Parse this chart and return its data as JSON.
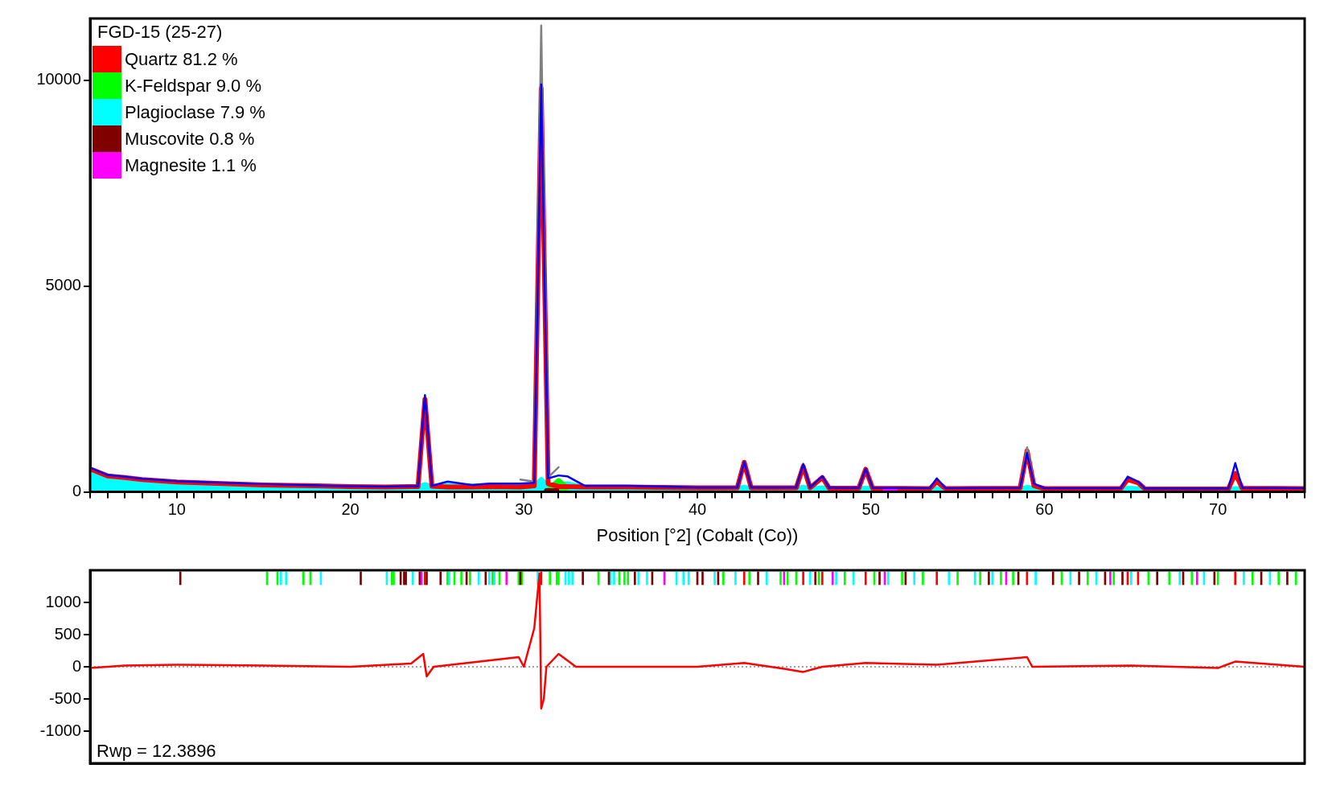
{
  "chart_data": [
    {
      "type": "line",
      "legend_title": "FGD-15 (25-27)",
      "xlabel": "Position [°2] (Cobalt (Co))",
      "legend": "top left",
      "marker": "none",
      "xlim": [
        5,
        75
      ],
      "xticks": [
        {
          "value": 5,
          "label": null
        },
        {
          "value": 6,
          "label": null
        },
        {
          "value": 7,
          "label": null
        },
        {
          "value": 8,
          "label": null
        },
        {
          "value": 9,
          "label": null
        },
        10,
        {
          "value": 11,
          "label": null
        },
        {
          "value": 12,
          "label": null
        },
        {
          "value": 13,
          "label": null
        },
        {
          "value": 14,
          "label": null
        },
        {
          "value": 15,
          "label": null
        },
        {
          "value": 16,
          "label": null
        },
        {
          "value": 17,
          "label": null
        },
        {
          "value": 18,
          "label": null
        },
        {
          "value": 19,
          "label": null
        },
        20,
        {
          "value": 21,
          "label": null
        },
        {
          "value": 22,
          "label": null
        },
        {
          "value": 23,
          "label": null
        },
        {
          "value": 24,
          "label": null
        },
        {
          "value": 25,
          "label": null
        },
        {
          "value": 26,
          "label": null
        },
        {
          "value": 27,
          "label": null
        },
        {
          "value": 28,
          "label": null
        },
        {
          "value": 29,
          "label": null
        },
        30,
        {
          "value": 31,
          "label": null
        },
        {
          "value": 32,
          "label": null
        },
        {
          "value": 33,
          "label": null
        },
        {
          "value": 34,
          "label": null
        },
        {
          "value": 35,
          "label": null
        },
        {
          "value": 36,
          "label": null
        },
        {
          "value": 37,
          "label": null
        },
        {
          "value": 38,
          "label": null
        },
        {
          "value": 39,
          "label": null
        },
        40,
        {
          "value": 41,
          "label": null
        },
        {
          "value": 42,
          "label": null
        },
        {
          "value": 43,
          "label": null
        },
        {
          "value": 44,
          "label": null
        },
        {
          "value": 45,
          "label": null
        },
        {
          "value": 46,
          "label": null
        },
        {
          "value": 47,
          "label": null
        },
        {
          "value": 48,
          "label": null
        },
        {
          "value": 49,
          "label": null
        },
        50,
        {
          "value": 51,
          "label": null
        },
        {
          "value": 52,
          "label": null
        },
        {
          "value": 53,
          "label": null
        },
        {
          "value": 54,
          "label": null
        },
        {
          "value": 55,
          "label": null
        },
        {
          "value": 56,
          "label": null
        },
        {
          "value": 57,
          "label": null
        },
        {
          "value": 58,
          "label": null
        },
        {
          "value": 59,
          "label": null
        },
        60,
        {
          "value": 61,
          "label": null
        },
        {
          "value": 62,
          "label": null
        },
        {
          "value": 63,
          "label": null
        },
        {
          "value": 64,
          "label": null
        },
        {
          "value": 65,
          "label": null
        },
        {
          "value": 66,
          "label": null
        },
        {
          "value": 67,
          "label": null
        },
        {
          "value": 68,
          "label": null
        },
        {
          "value": 69,
          "label": null
        },
        70,
        {
          "value": 71,
          "label": null
        },
        {
          "value": 72,
          "label": null
        },
        {
          "value": 73,
          "label": null
        },
        {
          "value": 74,
          "label": null
        },
        {
          "value": 75,
          "label": null
        }
      ],
      "ylim": [
        0,
        11500
      ],
      "yticks": [
        0,
        5000,
        10000
      ],
      "x": [
        5,
        6,
        7,
        8,
        10,
        12,
        15,
        18,
        20,
        22,
        23.9,
        24.3,
        24.7,
        25.6,
        27,
        28,
        29.8,
        30.6,
        31,
        31.4,
        32,
        32.5,
        33.5,
        36,
        40,
        42.3,
        42.7,
        43.1,
        45.7,
        46.1,
        46.5,
        47.2,
        47.6,
        49.3,
        49.7,
        50.1,
        53.4,
        53.8,
        54.3,
        58.6,
        59,
        59.4,
        60,
        64.4,
        64.8,
        65.4,
        65.8,
        70.6,
        71,
        71.4,
        75
      ],
      "series": [
        {
          "name": "Quartz 81.2 %",
          "color": "#ff0000",
          "values": [
            560,
            390,
            350,
            300,
            240,
            210,
            170,
            150,
            130,
            120,
            130,
            2250,
            140,
            120,
            120,
            130,
            120,
            150,
            9800,
            200,
            130,
            130,
            120,
            120,
            100,
            100,
            720,
            100,
            100,
            620,
            100,
            350,
            90,
            90,
            550,
            90,
            80,
            250,
            80,
            90,
            1000,
            150,
            80,
            80,
            300,
            220,
            70,
            70,
            450,
            90,
            80
          ]
        },
        {
          "name": "K-Feldspar 9.0 %",
          "type": "area",
          "color": "#00ff00",
          "x": [
            31.5,
            32,
            32.5
          ],
          "values": [
            100,
            280,
            100
          ]
        },
        {
          "name": "Plagioclase 7.9 %",
          "type": "area",
          "color": "#00ffff",
          "values": [
            520,
            370,
            330,
            280,
            220,
            190,
            160,
            140,
            120,
            110,
            120,
            180,
            120,
            160,
            140,
            150,
            130,
            140,
            300,
            150,
            160,
            200,
            110,
            110,
            90,
            90,
            110,
            90,
            90,
            110,
            90,
            100,
            80,
            80,
            90,
            80,
            70,
            80,
            70,
            70,
            110,
            90,
            70,
            70,
            90,
            80,
            60,
            60,
            80,
            70,
            60
          ]
        },
        {
          "name": "Muscovite 0.8 %",
          "color": "#800000",
          "x": [
            31.3,
            31.9
          ],
          "values": [
            30,
            30
          ]
        },
        {
          "name": "Magnesite 1.1 %",
          "color": "#ff00ff",
          "x": [
            50.8,
            51.4
          ],
          "values": [
            30,
            30
          ]
        },
        {
          "color": "#808080",
          "values": [
            null,
            null,
            null,
            null,
            null,
            null,
            null,
            null,
            null,
            null,
            null,
            null,
            null,
            null,
            null,
            null,
            300,
            250,
            11330,
            350,
            600,
            null,
            null,
            null,
            null,
            null,
            null,
            null,
            null,
            null,
            null,
            null,
            null,
            null,
            null,
            null,
            null,
            null,
            null,
            100,
            1080,
            200,
            null,
            null,
            null,
            null,
            null,
            null,
            null,
            null,
            null
          ]
        },
        {
          "color": "#0000ff",
          "values": [
            590,
            410,
            370,
            320,
            260,
            230,
            190,
            160,
            140,
            130,
            140,
            2350,
            150,
            250,
            170,
            200,
            200,
            220,
            9900,
            330,
            400,
            380,
            150,
            150,
            110,
            110,
            730,
            110,
            110,
            680,
            110,
            380,
            100,
            100,
            560,
            100,
            90,
            330,
            90,
            100,
            950,
            200,
            90,
            90,
            370,
            250,
            80,
            80,
            700,
            100,
            90
          ]
        }
      ]
    },
    {
      "type": "line",
      "marker": "none",
      "tick_labels": "y",
      "annotations": [
        "Rwp = 12.3896"
      ],
      "xlim": [
        5,
        75
      ],
      "ylim": [
        -1500,
        1500
      ],
      "yticks": [
        -1000,
        -500,
        0,
        500,
        1000
      ],
      "ref_lines": [
        {
          "axis": "y",
          "value": 0,
          "color": "#808080",
          "line_style": "dotted"
        }
      ],
      "series": [
        {
          "type": "bar",
          "color": "#ff0000",
          "x": [
            24.3,
            31,
            42.7,
            46.1,
            47.2,
            49.7,
            53.8,
            59,
            64.8,
            65.4,
            71
          ],
          "base": [
            1275,
            1275,
            1275,
            1275,
            1275,
            1275,
            1275,
            1275,
            1275,
            1275,
            1275
          ],
          "values": [
            200,
            200,
            200,
            200,
            200,
            200,
            200,
            200,
            200,
            200,
            200
          ]
        },
        {
          "type": "bar",
          "color": "#00ff00",
          "x": [
            15.2,
            15.8,
            17.3,
            17.7,
            22.4,
            22.5,
            25.6,
            26,
            26.4,
            26.9,
            28.2,
            28.6,
            29.7,
            29.9,
            31.5,
            31.9,
            32,
            34.3,
            35.5,
            35.8,
            36,
            41.5,
            43,
            44.8,
            45.2,
            45.7,
            47,
            48.5,
            50.2,
            51.8,
            53,
            55,
            56.3,
            57.5,
            58.2,
            61,
            62.5,
            64,
            66,
            67.2,
            68.5,
            70,
            72,
            73.5,
            74.5
          ],
          "base": [
            1275,
            1275,
            1275,
            1275,
            1275,
            1275,
            1275,
            1275,
            1275,
            1275,
            1275,
            1275,
            1275,
            1275,
            1275,
            1275,
            1275,
            1275,
            1275,
            1275,
            1275,
            1275,
            1275,
            1275,
            1275,
            1275,
            1275,
            1275,
            1275,
            1275,
            1275,
            1275,
            1275,
            1275,
            1275,
            1275,
            1275,
            1275,
            1275,
            1275,
            1275,
            1275,
            1275,
            1275,
            1275
          ],
          "values": [
            200,
            200,
            200,
            200,
            200,
            200,
            200,
            200,
            200,
            200,
            200,
            200,
            200,
            200,
            200,
            200,
            200,
            200,
            200,
            200,
            200,
            200,
            200,
            200,
            200,
            200,
            200,
            200,
            200,
            200,
            200,
            200,
            200,
            200,
            200,
            200,
            200,
            200,
            200,
            200,
            200,
            200,
            200,
            200,
            200
          ]
        },
        {
          "type": "bar",
          "color": "#00ffff",
          "x": [
            16,
            16.3,
            18.3,
            22.1,
            23.6,
            25.7,
            27.4,
            28,
            28.3,
            30.8,
            32.4,
            32.6,
            32.8,
            35,
            35.2,
            36.6,
            37.1,
            38.8,
            39.2,
            39.5,
            41,
            42.2,
            44,
            46.5,
            48,
            49,
            51,
            52.5,
            54.5,
            56,
            57,
            59.5,
            61.5,
            63,
            65,
            67.8,
            69.2,
            71.5,
            73
          ],
          "base": [
            1275,
            1275,
            1275,
            1275,
            1275,
            1275,
            1275,
            1275,
            1275,
            1275,
            1275,
            1275,
            1275,
            1275,
            1275,
            1275,
            1275,
            1275,
            1275,
            1275,
            1275,
            1275,
            1275,
            1275,
            1275,
            1275,
            1275,
            1275,
            1275,
            1275,
            1275,
            1275,
            1275,
            1275,
            1275,
            1275,
            1275,
            1275,
            1275
          ],
          "values": [
            200,
            200,
            200,
            200,
            200,
            200,
            200,
            200,
            200,
            200,
            200,
            200,
            200,
            200,
            200,
            200,
            200,
            200,
            200,
            200,
            200,
            200,
            200,
            200,
            200,
            200,
            200,
            200,
            200,
            200,
            200,
            200,
            200,
            200,
            200,
            200,
            200,
            200,
            200
          ]
        },
        {
          "type": "bar",
          "color": "#800000",
          "x": [
            10.2,
            20.6,
            22.9,
            23.1,
            23.2,
            24,
            24.4,
            25.2,
            26.7,
            27.8,
            29.8,
            33.4,
            34.9,
            36.4,
            37.4,
            40,
            40.3,
            41.2,
            43.5,
            46.8,
            50.5,
            52,
            56.8,
            58.5,
            60.5,
            62,
            63.5,
            64.5,
            66.5,
            68,
            69.8,
            72.5,
            74
          ],
          "base": [
            1275,
            1275,
            1275,
            1275,
            1275,
            1275,
            1275,
            1275,
            1275,
            1275,
            1275,
            1275,
            1275,
            1275,
            1275,
            1275,
            1275,
            1275,
            1275,
            1275,
            1275,
            1275,
            1275,
            1275,
            1275,
            1275,
            1275,
            1275,
            1275,
            1275,
            1275,
            1275,
            1275
          ],
          "values": [
            200,
            200,
            200,
            200,
            200,
            200,
            200,
            200,
            200,
            200,
            200,
            200,
            200,
            200,
            200,
            200,
            200,
            200,
            200,
            200,
            200,
            200,
            200,
            200,
            200,
            200,
            200,
            200,
            200,
            200,
            200,
            200,
            200
          ]
        },
        {
          "type": "bar",
          "color": "#ff00ff",
          "x": [
            24.1,
            29,
            38.1,
            45,
            47.8,
            50.8,
            57.8,
            63.8,
            68.8
          ],
          "base": [
            1275,
            1275,
            1275,
            1275,
            1275,
            1275,
            1275,
            1275,
            1275
          ],
          "values": [
            200,
            200,
            200,
            200,
            200,
            200,
            200,
            200,
            200
          ]
        },
        {
          "color": "#ff0000",
          "x": [
            5,
            7,
            10,
            15,
            20,
            23.5,
            24.2,
            24.4,
            24.8,
            29.7,
            30,
            30.6,
            30.9,
            31,
            31.15,
            31.3,
            32,
            32.5,
            33,
            40,
            42.7,
            45,
            46.1,
            47.2,
            49.7,
            53.8,
            59,
            59.3,
            65,
            70,
            71,
            75
          ],
          "values": [
            -20,
            20,
            30,
            20,
            0,
            50,
            200,
            -150,
            0,
            150,
            0,
            600,
            1450,
            -650,
            -500,
            0,
            200,
            100,
            0,
            0,
            60,
            -30,
            -80,
            0,
            60,
            30,
            150,
            0,
            20,
            -20,
            80,
            0
          ]
        }
      ]
    }
  ]
}
